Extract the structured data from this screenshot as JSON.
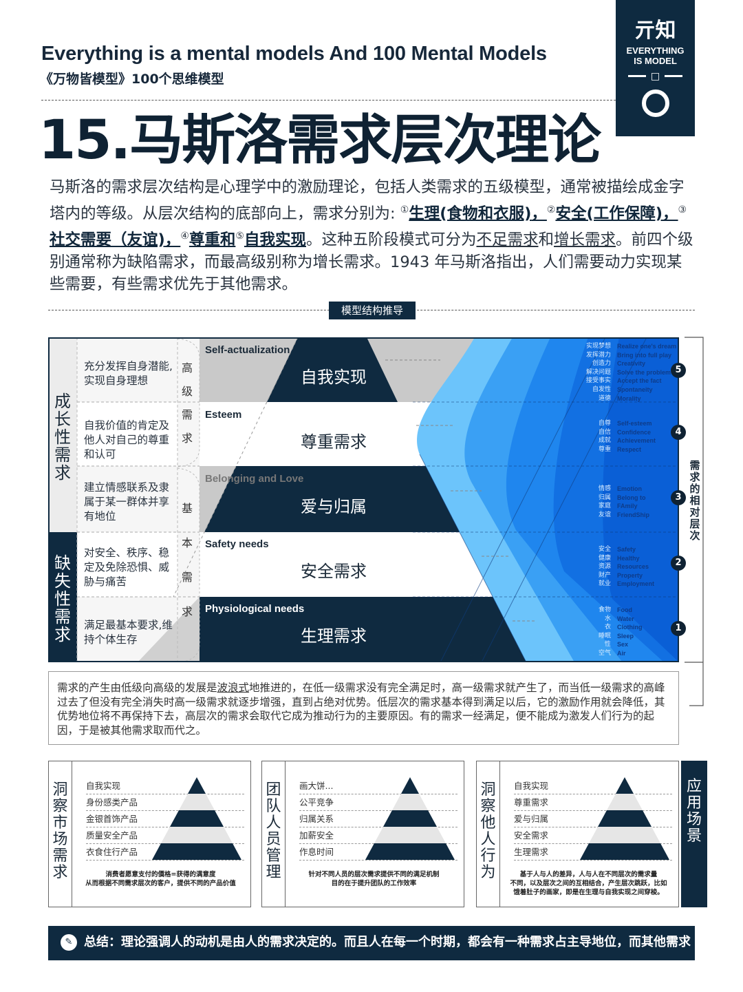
{
  "header": {
    "title": "Everything is a mental models And 100 Mental Models",
    "subtitle": "《万物皆模型》100个思维模型"
  },
  "logo": {
    "mark": "亓知",
    "text_line1": "EVERYTHING",
    "text_line2": "IS MODEL",
    "center_glyph": "□"
  },
  "page_title": "15.马斯洛需求层次理论",
  "intro": {
    "segments": [
      {
        "text": "马斯洛的需求层次结构是心理学中的激励理论，包括人类需求的五级模型，通常被描绘成金字塔内的等级。从层次结构的底部向上，需求分别为: "
      },
      {
        "text": "①"
      },
      {
        "text": "生理(食物和衣服)"
      },
      {
        "text": "，"
      },
      {
        "text": "②"
      },
      {
        "text": "安全(工作保障)"
      },
      {
        "text": "，"
      },
      {
        "text": "③"
      },
      {
        "text": "社交需要（友谊)"
      },
      {
        "text": "，"
      },
      {
        "text": "④"
      },
      {
        "text": "尊重和"
      },
      {
        "text": "⑤"
      },
      {
        "text": "自我实现"
      },
      {
        "text": "。这种五阶段模式可分为"
      },
      {
        "text": "不足需求"
      },
      {
        "text": "和"
      },
      {
        "text": "增长需求"
      },
      {
        "text": "。前四个级别通常称为缺陷需求，而最高级别称为增长需求。1943 年马斯洛指出，人们需要动力实现某些需要，有些需求优先于其他需求。"
      }
    ]
  },
  "section_label": "模型结构推导",
  "diagram": {
    "growth_label": "成长性需求",
    "deficiency_label": "缺失性需求",
    "high_label": "高级需求",
    "basic_label": "基本需求",
    "relative_label": "需求的相对层次",
    "levels": [
      {
        "num": "5",
        "en": "Self-actualization",
        "zh": "自我实现",
        "desc": "充分发挥自身潜能,实现自身理想",
        "labels_zh": [
          "实现梦想",
          "发挥潜力",
          "创造力",
          "解决问题",
          "接受事实",
          "自发性",
          "道德"
        ],
        "labels_en": [
          "Realize one's dream",
          "Bring into full play",
          "Creativity",
          "Solve the problem",
          "Accept the fact",
          "Spontaneity",
          "Morality"
        ]
      },
      {
        "num": "4",
        "en": "Esteem",
        "zh": "尊重需求",
        "desc": "自我价值的肯定及他人对自己的尊重和认可",
        "labels_zh": [
          "自尊",
          "自信",
          "成就",
          "尊重"
        ],
        "labels_en": [
          "Self-esteem",
          "Confidence",
          "Achievement",
          "Respect"
        ]
      },
      {
        "num": "3",
        "en": "Belonging and Love",
        "zh": "爱与归属",
        "desc": "建立情感联系及隶属于某一群体并享有地位",
        "labels_zh": [
          "情感",
          "归属",
          "家庭",
          "友谊"
        ],
        "labels_en": [
          "Emotion",
          "Belong to",
          "FAmily",
          "FriendShip"
        ]
      },
      {
        "num": "2",
        "en": "Safety needs",
        "zh": "安全需求",
        "desc": "对安全、秩序、稳定及免除恐惧、威胁与痛苦",
        "labels_zh": [
          "安全",
          "健康",
          "资源",
          "财产",
          "就业"
        ],
        "labels_en": [
          "Safety",
          "Healthy",
          "Resources",
          "Property",
          "Employment"
        ]
      },
      {
        "num": "1",
        "en": "Physiological needs",
        "zh": "生理需求",
        "desc": "满足最基本要求,维持个体生存",
        "labels_zh": [
          "食物",
          "水",
          "衣",
          "睡眠",
          "性",
          "空气"
        ],
        "labels_en": [
          "Food",
          "Water",
          "Clothing",
          "Sleep",
          "Sex",
          "Air"
        ]
      }
    ],
    "colors": {
      "navy": "#0f2a40",
      "gray": "#c9c9c9",
      "blue_light": "#5cb8f7",
      "blue_mid": "#1f86ee",
      "blue_dark": "#0a58d0"
    }
  },
  "explanation": {
    "segments": [
      {
        "text": "需求的产生由低级向高级的发展是"
      },
      {
        "text": "波浪式"
      },
      {
        "text": "地推进的，在低一级需求没有完全满足时，高一级需求就产生了，而当低一级需求的高峰过去了但没有完全消失时高一级需求就逐步增强，直到占绝对优势。低层次的需求基本得到满足以后，它的激励作用就会降低，其优势地位将不再保持下去，高层次的需求会取代它成为推动行为的主要原因。有的需求一经满足，便不能成为激发人们行为的起因，于是被其他需求取而代之。"
      }
    ]
  },
  "panels": [
    {
      "title": "洞察市场需求",
      "items": [
        "自我实现",
        "身份感类产品",
        "金银首饰产品",
        "质量安全产品",
        "衣食住行产品"
      ],
      "note": "消费者愿意支付的價格=获得的满意度\n从而根据不同需求层次的客户，提供不同的产品价值"
    },
    {
      "title": "团队人员管理",
      "items": [
        "画大饼...",
        "公平竞争",
        "归属关系",
        "加薪安全",
        "作息时间"
      ],
      "note": "针对不同人员的层次需求提供不同的满足机制\n目的在于提升团队的工作效率"
    },
    {
      "title": "洞察他人行为",
      "items": [
        "自我实现",
        "尊重需求",
        "爱与归属",
        "安全需求",
        "生理需求"
      ],
      "note": "基于人与人的差异，人与人在不同层次的需求量\n不同，以及层次之间的互相结合，产生层次跳跃，比如\n饿着肚子的画家，即是在生理与自我实现之间穿梭。"
    }
  ],
  "application_label": "应用场景",
  "summary": {
    "icon": "note-icon",
    "text": "总结：理论强调人的动机是由人的需求决定的。而且人在每一个时期，都会有一种需求占主导地位，而其他需求处于从属地位。"
  }
}
